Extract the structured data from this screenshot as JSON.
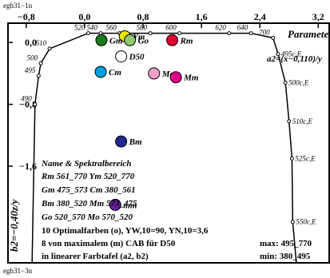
{
  "header": {
    "top_id": "egh31−1n",
    "bottom_id": "egh31−3n"
  },
  "chart_data": {
    "type": "scatter",
    "title": "",
    "parameter_label": "Parameter: N",
    "formula": "a2=(x−0,110)/y",
    "x_axis_label": "",
    "y_axis_label": "b2=−0,40z/y",
    "x_ticks": [
      "−0,8",
      "0,0",
      "0,8",
      "1,6",
      "2,4",
      "3,2"
    ],
    "y_ticks": [
      "0,0",
      "−0,8",
      "−1,6"
    ],
    "xlim": [
      -1.05,
      3.35
    ],
    "ylim": [
      -2.85,
      0.25
    ],
    "wavelength_labels": [
      {
        "text": "520",
        "x": 0.05,
        "y": 0.12
      },
      {
        "text": "540",
        "x": 0.22,
        "y": 0.12
      },
      {
        "text": "560",
        "x": 0.48,
        "y": 0.12
      },
      {
        "text": "580",
        "x": 0.9,
        "y": 0.12
      },
      {
        "text": "600",
        "x": 1.3,
        "y": 0.12
      },
      {
        "text": "620",
        "x": 1.98,
        "y": 0.12
      },
      {
        "text": "640",
        "x": 2.28,
        "y": 0.12
      },
      {
        "text": "700",
        "x": 2.58,
        "y": 0.06
      },
      {
        "text": "510",
        "x": -0.48,
        "y": -0.08
      },
      {
        "text": "500",
        "x": -0.6,
        "y": -0.27
      },
      {
        "text": "495",
        "x": -0.63,
        "y": -0.43
      },
      {
        "text": "490",
        "x": -0.68,
        "y": -0.8
      }
    ],
    "boundary_labels": [
      {
        "text": "495c,E",
        "x": 2.65,
        "y": -0.15
      },
      {
        "text": "500c,E",
        "x": 2.75,
        "y": -0.52
      },
      {
        "text": "510c,E",
        "x": 2.8,
        "y": -1.02
      },
      {
        "text": "525c,E",
        "x": 2.84,
        "y": -1.5
      },
      {
        "text": "550c,E",
        "x": 2.85,
        "y": -2.32
      }
    ],
    "points": [
      {
        "name": "Y",
        "x": 0.55,
        "y": 0.08,
        "color": "#e8e800"
      },
      {
        "name": "G",
        "x": 0.23,
        "y": 0.03,
        "color": "#1a7a1a"
      },
      {
        "name": "Go",
        "x": 0.62,
        "y": 0.03,
        "color": "#90c870"
      },
      {
        "name": "R",
        "x": 1.2,
        "y": 0.03,
        "color": "#e00030"
      },
      {
        "name": "D50",
        "x": 0.5,
        "y": -0.18,
        "color": "#ffffff"
      },
      {
        "name": "C",
        "x": 0.22,
        "y": -0.38,
        "color": "#00a0e0"
      },
      {
        "name": "Mo",
        "x": 0.95,
        "y": -0.4,
        "color": "#f0a0c8"
      },
      {
        "name": "M",
        "x": 1.25,
        "y": -0.45,
        "color": "#e0008a"
      },
      {
        "name": "B",
        "x": 0.5,
        "y": -1.28,
        "color": "#202890"
      },
      {
        "name": "mm",
        "x": 0.42,
        "y": -2.1,
        "color": "#6820a0"
      }
    ],
    "point_labels": {
      "Y": "Y",
      "Y_sub": "m",
      "G": "G",
      "G_sub": "m",
      "Go": "G",
      "Go_sub": "o",
      "R": "R",
      "R_sub": "m",
      "D50": "D50",
      "C": "C",
      "C_sub": "m",
      "M": "M",
      "M_sub": "m",
      "Mo": "M",
      "Mo_sub": "o",
      "B": "B",
      "B_sub": "m",
      "mm": "mm"
    },
    "legend": {
      "heading": "Name & Spektralbereich",
      "rows": [
        "Rm 561_770   Ym 520_770",
        "Gm 475_573   Cm 380_561",
        "Bm 380_520   Mm 573_475",
        "Go 520_570   Mo 570_520"
      ],
      "line1": "10 Optimalfarben (o), YW,10=90, YN,10=3,6",
      "line2": "8 von maximalem (m) CAB für D50",
      "line3": "in linearer Farbtafel (a2, b2)",
      "max_label": "max: 495_770",
      "min_label": "min: 380_495"
    }
  }
}
